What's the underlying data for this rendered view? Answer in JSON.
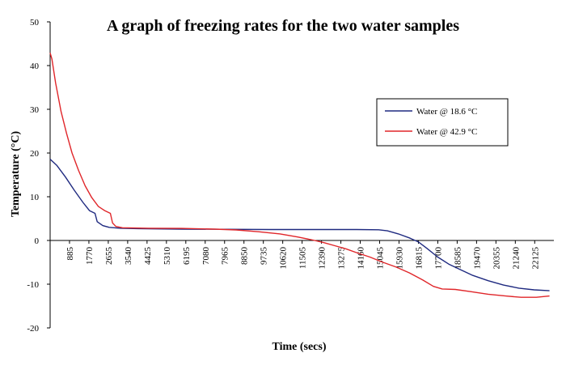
{
  "chart_data": {
    "type": "line",
    "title": "A graph of freezing rates for the two water samples",
    "xlabel": "Time (secs)",
    "ylabel": "Temperature (°C)",
    "xlim": [
      0,
      23000
    ],
    "ylim": [
      -20,
      50
    ],
    "grid": false,
    "legend_position": "right",
    "x_ticks": [
      885,
      1770,
      2655,
      3540,
      4425,
      5310,
      6195,
      7080,
      7965,
      8850,
      9735,
      10620,
      11505,
      12390,
      13275,
      14160,
      15045,
      15930,
      16815,
      17700,
      18585,
      19470,
      20355,
      21240,
      22125
    ],
    "y_ticks": [
      -20,
      -10,
      0,
      10,
      20,
      30,
      40,
      50
    ],
    "series": [
      {
        "name": "Water @ 18.6 °C",
        "color": "#1f2a80",
        "points": [
          [
            0,
            18.6
          ],
          [
            300,
            17.2
          ],
          [
            700,
            14.5
          ],
          [
            1100,
            11.5
          ],
          [
            1500,
            8.7
          ],
          [
            1800,
            6.8
          ],
          [
            2050,
            6.2
          ],
          [
            2150,
            4.3
          ],
          [
            2400,
            3.4
          ],
          [
            2700,
            3.0
          ],
          [
            3200,
            2.8
          ],
          [
            4000,
            2.7
          ],
          [
            6000,
            2.6
          ],
          [
            8000,
            2.55
          ],
          [
            10000,
            2.5
          ],
          [
            12000,
            2.5
          ],
          [
            14000,
            2.5
          ],
          [
            15000,
            2.45
          ],
          [
            15400,
            2.2
          ],
          [
            15900,
            1.5
          ],
          [
            16400,
            0.6
          ],
          [
            16800,
            -0.3
          ],
          [
            17200,
            -1.8
          ],
          [
            17700,
            -3.8
          ],
          [
            18200,
            -5.4
          ],
          [
            18700,
            -6.6
          ],
          [
            19300,
            -8.0
          ],
          [
            20000,
            -9.2
          ],
          [
            20700,
            -10.2
          ],
          [
            21400,
            -10.9
          ],
          [
            22100,
            -11.3
          ],
          [
            22800,
            -11.5
          ]
        ]
      },
      {
        "name": "Water @ 42.9 °C",
        "color": "#e0262a",
        "points": [
          [
            0,
            42.9
          ],
          [
            80,
            41.5
          ],
          [
            250,
            36.0
          ],
          [
            500,
            29.5
          ],
          [
            750,
            24.5
          ],
          [
            1000,
            20.0
          ],
          [
            1300,
            16.0
          ],
          [
            1600,
            12.5
          ],
          [
            1900,
            9.8
          ],
          [
            2200,
            7.8
          ],
          [
            2500,
            6.8
          ],
          [
            2750,
            6.2
          ],
          [
            2850,
            4.0
          ],
          [
            3000,
            3.2
          ],
          [
            3300,
            2.9
          ],
          [
            3800,
            2.85
          ],
          [
            4500,
            2.8
          ],
          [
            6000,
            2.75
          ],
          [
            7500,
            2.6
          ],
          [
            8500,
            2.4
          ],
          [
            9500,
            2.0
          ],
          [
            10500,
            1.5
          ],
          [
            11300,
            0.8
          ],
          [
            12000,
            0.1
          ],
          [
            12500,
            -0.5
          ],
          [
            13000,
            -1.2
          ],
          [
            13500,
            -1.9
          ],
          [
            14000,
            -2.8
          ],
          [
            14600,
            -3.8
          ],
          [
            15200,
            -5.0
          ],
          [
            15800,
            -6.1
          ],
          [
            16400,
            -7.4
          ],
          [
            17000,
            -9.0
          ],
          [
            17500,
            -10.5
          ],
          [
            17900,
            -11.1
          ],
          [
            18500,
            -11.2
          ],
          [
            19200,
            -11.7
          ],
          [
            20000,
            -12.3
          ],
          [
            20800,
            -12.7
          ],
          [
            21500,
            -13.0
          ],
          [
            22200,
            -13.0
          ],
          [
            22800,
            -12.7
          ]
        ]
      }
    ]
  }
}
